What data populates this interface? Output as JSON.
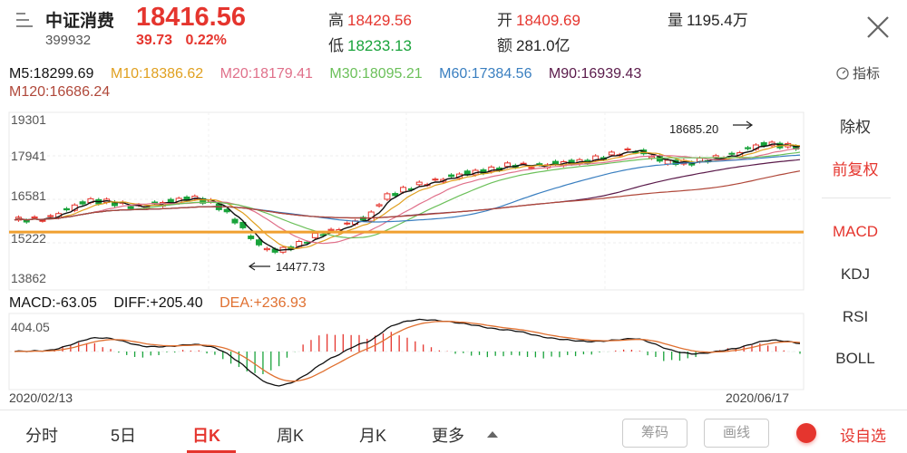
{
  "header": {
    "name": "中证消费",
    "code": "399932",
    "price": "18416.56",
    "change": "39.73",
    "change_pct": "0.22%",
    "high_label": "高",
    "high": "18429.56",
    "low_label": "低",
    "low": "18233.13",
    "open_label": "开",
    "open": "18409.69",
    "amount_label": "额",
    "amount": "281.0亿",
    "volume_label": "量",
    "volume": "1195.4万"
  },
  "ma": {
    "m5": "M5:18299.69",
    "m10": "M10:18386.62",
    "m20": "M20:18179.41",
    "m30": "M30:18095.21",
    "m60": "M60:17384.56",
    "m90": "M90:16939.43",
    "m120": "M120:16686.24"
  },
  "indicator_label": "指标",
  "price_axis": [
    "19301",
    "17941",
    "16581",
    "15222",
    "13862"
  ],
  "annotations": {
    "max": "18685.20",
    "min": "14477.73"
  },
  "macd_legend": {
    "macd": "MACD:-63.05",
    "diff": "DIFF:+205.40",
    "dea": "DEA:+236.93"
  },
  "macd_axis_top": "404.05",
  "dates": {
    "start": "2020/02/13",
    "end": "2020/06/17"
  },
  "side_menu": {
    "chuquan": "除权",
    "qianfuquan": "前复权",
    "macd": "MACD",
    "kdj": "KDJ",
    "rsi": "RSI",
    "boll": "BOLL"
  },
  "tabs": {
    "fenshi": "分时",
    "wuri": "5日",
    "rik": "日K",
    "zhouk": "周K",
    "yuek": "月K",
    "more": "更多"
  },
  "buttons": {
    "chouma": "筹码",
    "huaxian": "画线",
    "add_fav": "设自选"
  },
  "colors": {
    "up": "#e5352e",
    "down": "#19a33b",
    "ma5": "#111111",
    "ma10": "#e0a020",
    "ma20": "#e0708a",
    "ma30": "#6cc05a",
    "ma60": "#3a7fc0",
    "ma90": "#5a1a4a",
    "ma120": "#b0483a",
    "support": "#f0a030"
  },
  "chart_data": {
    "type": "candlestick",
    "y_ticks": [
      19301,
      17941,
      16581,
      15222,
      13862
    ],
    "ylim": [
      13862,
      19301
    ],
    "support_level": 15550,
    "max_annotation": 18685.2,
    "min_annotation": 14477.73,
    "ma_values": {
      "M5": 18299.69,
      "M10": 18386.62,
      "M20": 18179.41,
      "M30": 18095.21,
      "M60": 17384.56,
      "M90": 16939.43,
      "M120": 16686.24
    },
    "macd": {
      "MACD": -63.05,
      "DIFF": 205.4,
      "DEA": 236.93,
      "axis_top": 404.05
    },
    "dates": [
      "2020/02/13",
      "2020/06/17"
    ]
  }
}
